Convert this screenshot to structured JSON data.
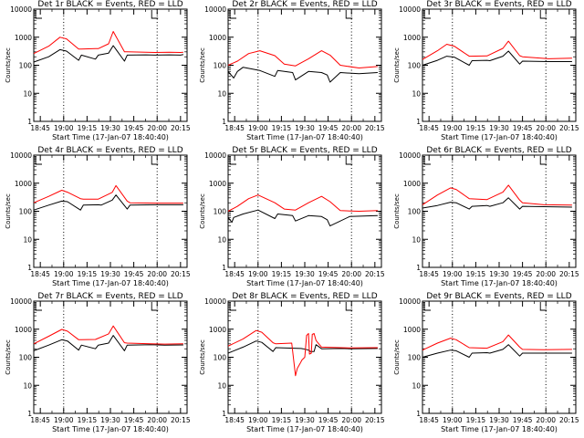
{
  "colors": {
    "events": "#000000",
    "lld": "#ff0000",
    "axis": "#000000"
  },
  "chart_data": [
    {
      "type": "line",
      "detector": "1r",
      "title": "Det 1r BLACK = Events, RED = LLD",
      "xlabel": "Start Time (17-Jan-07 18:40:40)",
      "ylabel": "Counts/sec",
      "y_scale": "log",
      "ylim": [
        1,
        10000
      ],
      "yticks": [
        1,
        10,
        100,
        1000,
        10000
      ],
      "ytick_labels": [
        "1",
        "10",
        "100",
        "1000",
        "10000"
      ],
      "x_units": "hours since 18:40:40",
      "xlim": [
        0,
        1.64
      ],
      "xticks": [
        0.07,
        0.32,
        0.57,
        0.82,
        1.07,
        1.32,
        1.57
      ],
      "xtick_labels": [
        "18:45",
        "19:00",
        "19:15",
        "19:30",
        "19:45",
        "20:00",
        "20:15"
      ],
      "markers": [
        0.32,
        1.32
      ],
      "series": [
        {
          "name": "Events",
          "color": "#000000",
          "x": [
            0.0,
            0.16,
            0.28,
            0.35,
            0.48,
            0.51,
            0.66,
            0.69,
            0.8,
            0.85,
            0.97,
            1.0,
            1.2,
            1.3,
            1.45,
            1.57,
            1.6
          ],
          "y": [
            130,
            200,
            360,
            320,
            150,
            230,
            165,
            230,
            270,
            500,
            140,
            230,
            235,
            230,
            235,
            230,
            240
          ]
        },
        {
          "name": "LLD",
          "color": "#ff0000",
          "x": [
            0.0,
            0.16,
            0.28,
            0.35,
            0.48,
            0.51,
            0.66,
            0.69,
            0.8,
            0.85,
            0.97,
            1.0,
            1.2,
            1.3,
            1.45,
            1.57,
            1.6
          ],
          "y": [
            260,
            480,
            1000,
            870,
            380,
            380,
            390,
            390,
            580,
            1600,
            300,
            300,
            290,
            285,
            290,
            285,
            290
          ]
        }
      ]
    },
    {
      "type": "line",
      "detector": "2r",
      "title": "Det 2r BLACK = Events, RED = LLD",
      "xlabel": "Start Time (17-Jan-07 18:40:40)",
      "ylabel": "Counts/sec",
      "y_scale": "log",
      "ylim": [
        1,
        10000
      ],
      "yticks": [
        1,
        10,
        100,
        1000,
        10000
      ],
      "ytick_labels": [
        "1",
        "10",
        "100",
        "1000",
        "10000"
      ],
      "x_units": "hours since 18:40:40",
      "xlim": [
        0,
        1.64
      ],
      "xticks": [
        0.07,
        0.32,
        0.57,
        0.82,
        1.07,
        1.32,
        1.57
      ],
      "xtick_labels": [
        "18:45",
        "19:00",
        "19:15",
        "19:30",
        "19:45",
        "20:00",
        "20:15"
      ],
      "markers": [
        0.32,
        1.32
      ],
      "series": [
        {
          "name": "Events",
          "color": "#000000",
          "x": [
            0.0,
            0.06,
            0.1,
            0.16,
            0.34,
            0.5,
            0.53,
            0.69,
            0.72,
            0.86,
            1.0,
            1.06,
            1.09,
            1.2,
            1.4,
            1.6
          ],
          "y": [
            60,
            35,
            60,
            85,
            65,
            40,
            65,
            55,
            30,
            60,
            55,
            45,
            25,
            55,
            50,
            55
          ]
        },
        {
          "name": "LLD",
          "color": "#ff0000",
          "x": [
            0.0,
            0.1,
            0.22,
            0.34,
            0.5,
            0.6,
            0.72,
            0.86,
            1.0,
            1.09,
            1.2,
            1.4,
            1.6
          ],
          "y": [
            100,
            140,
            260,
            330,
            220,
            110,
            95,
            170,
            330,
            230,
            100,
            80,
            90
          ]
        }
      ]
    },
    {
      "type": "line",
      "detector": "3r",
      "title": "Det 3r BLACK = Events, RED = LLD",
      "xlabel": "Start Time (17-Jan-07 18:40:40)",
      "ylabel": "Counts/sec",
      "y_scale": "log",
      "ylim": [
        1,
        10000
      ],
      "yticks": [
        1,
        10,
        100,
        1000,
        10000
      ],
      "ytick_labels": [
        "1",
        "10",
        "100",
        "1000",
        "10000"
      ],
      "x_units": "hours since 18:40:40",
      "xlim": [
        0,
        1.64
      ],
      "xticks": [
        0.07,
        0.32,
        0.57,
        0.82,
        1.07,
        1.32,
        1.57
      ],
      "xtick_labels": [
        "18:45",
        "19:00",
        "19:15",
        "19:30",
        "19:45",
        "20:00",
        "20:15"
      ],
      "markers": [
        0.32,
        1.32
      ],
      "series": [
        {
          "name": "Events",
          "color": "#000000",
          "x": [
            0.0,
            0.16,
            0.26,
            0.34,
            0.5,
            0.53,
            0.69,
            0.72,
            0.86,
            0.92,
            1.04,
            1.07,
            1.35,
            1.6
          ],
          "y": [
            100,
            150,
            210,
            195,
            100,
            145,
            150,
            145,
            210,
            320,
            110,
            140,
            135,
            135
          ]
        },
        {
          "name": "LLD",
          "color": "#ff0000",
          "x": [
            0.0,
            0.16,
            0.26,
            0.34,
            0.5,
            0.69,
            0.86,
            0.92,
            1.04,
            1.07,
            1.35,
            1.6
          ],
          "y": [
            160,
            330,
            560,
            480,
            210,
            215,
            400,
            720,
            220,
            200,
            170,
            180
          ]
        }
      ]
    },
    {
      "type": "line",
      "detector": "4r",
      "title": "Det 4r BLACK = Events, RED = LLD",
      "xlabel": "Start Time (17-Jan-07 18:40:40)",
      "ylabel": "Counts/sec",
      "y_scale": "log",
      "ylim": [
        1,
        10000
      ],
      "yticks": [
        1,
        10,
        100,
        1000,
        10000
      ],
      "ytick_labels": [
        "1",
        "10",
        "100",
        "1000",
        "10000"
      ],
      "x_units": "hours since 18:40:40",
      "xlim": [
        0,
        1.64
      ],
      "xticks": [
        0.07,
        0.32,
        0.57,
        0.82,
        1.07,
        1.32,
        1.57
      ],
      "xtick_labels": [
        "18:45",
        "19:00",
        "19:15",
        "19:30",
        "19:45",
        "20:00",
        "20:15"
      ],
      "markers": [
        0.32,
        1.32
      ],
      "series": [
        {
          "name": "Events",
          "color": "#000000",
          "x": [
            0.0,
            0.16,
            0.3,
            0.36,
            0.5,
            0.53,
            0.69,
            0.72,
            0.84,
            0.88,
            1.0,
            1.03,
            1.3,
            1.6
          ],
          "y": [
            110,
            165,
            230,
            220,
            110,
            165,
            170,
            165,
            250,
            380,
            120,
            165,
            170,
            170
          ]
        },
        {
          "name": "LLD",
          "color": "#ff0000",
          "x": [
            0.0,
            0.16,
            0.3,
            0.36,
            0.5,
            0.53,
            0.69,
            0.84,
            0.88,
            1.0,
            1.03,
            1.3,
            1.6
          ],
          "y": [
            200,
            340,
            560,
            480,
            280,
            270,
            270,
            470,
            820,
            230,
            200,
            195,
            195
          ]
        }
      ]
    },
    {
      "type": "line",
      "detector": "5r",
      "title": "Det 5r BLACK = Events, RED = LLD",
      "xlabel": "Start Time (17-Jan-07 18:40:40)",
      "ylabel": "Counts/sec",
      "y_scale": "log",
      "ylim": [
        1,
        10000
      ],
      "yticks": [
        1,
        10,
        100,
        1000,
        10000
      ],
      "ytick_labels": [
        "1",
        "10",
        "100",
        "1000",
        "10000"
      ],
      "x_units": "hours since 18:40:40",
      "xlim": [
        0,
        1.64
      ],
      "xticks": [
        0.07,
        0.32,
        0.57,
        0.82,
        1.07,
        1.32,
        1.57
      ],
      "xtick_labels": [
        "18:45",
        "19:00",
        "19:15",
        "19:30",
        "19:45",
        "20:00",
        "20:15"
      ],
      "markers": [
        0.32,
        1.32
      ],
      "series": [
        {
          "name": "Events",
          "color": "#000000",
          "x": [
            0.0,
            0.04,
            0.06,
            0.16,
            0.32,
            0.5,
            0.53,
            0.69,
            0.72,
            0.86,
            1.0,
            1.06,
            1.09,
            1.3,
            1.6
          ],
          "y": [
            60,
            40,
            60,
            80,
            110,
            55,
            80,
            70,
            45,
            70,
            65,
            50,
            30,
            65,
            70
          ]
        },
        {
          "name": "LLD",
          "color": "#ff0000",
          "x": [
            0.0,
            0.1,
            0.22,
            0.32,
            0.5,
            0.6,
            0.72,
            0.86,
            1.0,
            1.09,
            1.2,
            1.4,
            1.6
          ],
          "y": [
            100,
            150,
            280,
            380,
            200,
            120,
            110,
            200,
            340,
            220,
            105,
            100,
            105
          ]
        }
      ]
    },
    {
      "type": "line",
      "detector": "6r",
      "title": "Det 6r BLACK = Events, RED = LLD",
      "xlabel": "Start Time (17-Jan-07 18:40:40)",
      "ylabel": "Counts/sec",
      "y_scale": "log",
      "ylim": [
        1,
        10000
      ],
      "yticks": [
        1,
        10,
        100,
        1000,
        10000
      ],
      "ytick_labels": [
        "1",
        "10",
        "100",
        "1000",
        "10000"
      ],
      "x_units": "hours since 18:40:40",
      "xlim": [
        0,
        1.64
      ],
      "xticks": [
        0.07,
        0.32,
        0.57,
        0.82,
        1.07,
        1.32,
        1.57
      ],
      "xtick_labels": [
        "18:45",
        "19:00",
        "19:15",
        "19:30",
        "19:45",
        "20:00",
        "20:15"
      ],
      "markers": [
        0.32,
        1.32
      ],
      "series": [
        {
          "name": "Events",
          "color": "#000000",
          "x": [
            0.0,
            0.16,
            0.3,
            0.36,
            0.5,
            0.53,
            0.69,
            0.72,
            0.86,
            0.92,
            1.04,
            1.07,
            1.3,
            1.6
          ],
          "y": [
            130,
            160,
            210,
            200,
            120,
            150,
            160,
            150,
            200,
            300,
            120,
            150,
            145,
            140
          ]
        },
        {
          "name": "LLD",
          "color": "#ff0000",
          "x": [
            0.0,
            0.16,
            0.3,
            0.36,
            0.5,
            0.69,
            0.86,
            0.92,
            1.04,
            1.07,
            1.3,
            1.6
          ],
          "y": [
            170,
            380,
            680,
            600,
            280,
            260,
            480,
            850,
            250,
            200,
            170,
            165
          ]
        }
      ]
    },
    {
      "type": "line",
      "detector": "7r",
      "title": "Det 7r BLACK = Events, RED = LLD",
      "xlabel": "Start Time (17-Jan-07 18:40:40)",
      "ylabel": "Counts/sec",
      "y_scale": "log",
      "ylim": [
        1,
        10000
      ],
      "yticks": [
        1,
        10,
        100,
        1000,
        10000
      ],
      "ytick_labels": [
        "1",
        "10",
        "100",
        "1000",
        "10000"
      ],
      "x_units": "hours since 18:40:40",
      "xlim": [
        0,
        1.64
      ],
      "xticks": [
        0.07,
        0.32,
        0.57,
        0.82,
        1.07,
        1.32,
        1.57
      ],
      "xtick_labels": [
        "18:45",
        "19:00",
        "19:15",
        "19:30",
        "19:45",
        "20:00",
        "20:15"
      ],
      "markers": [
        0.32,
        1.32
      ],
      "series": [
        {
          "name": "Events",
          "color": "#000000",
          "x": [
            0.0,
            0.16,
            0.3,
            0.36,
            0.48,
            0.51,
            0.66,
            0.69,
            0.8,
            0.85,
            0.97,
            1.0,
            1.25,
            1.4,
            1.6
          ],
          "y": [
            170,
            270,
            420,
            380,
            180,
            270,
            200,
            270,
            320,
            600,
            170,
            270,
            280,
            270,
            275
          ]
        },
        {
          "name": "LLD",
          "color": "#ff0000",
          "x": [
            0.0,
            0.16,
            0.3,
            0.36,
            0.48,
            0.51,
            0.66,
            0.8,
            0.85,
            0.97,
            1.0,
            1.25,
            1.4,
            1.6
          ],
          "y": [
            300,
            560,
            980,
            850,
            420,
            420,
            430,
            680,
            1300,
            330,
            320,
            300,
            295,
            300
          ]
        }
      ]
    },
    {
      "type": "line",
      "detector": "8r",
      "title": "Det 8r BLACK = Events, RED = LLD",
      "xlabel": "Start Time (17-Jan-07 18:40:40)",
      "ylabel": "Counts/sec",
      "y_scale": "log",
      "ylim": [
        1,
        10000
      ],
      "yticks": [
        1,
        10,
        100,
        1000,
        10000
      ],
      "ytick_labels": [
        "1",
        "10",
        "100",
        "1000",
        "10000"
      ],
      "x_units": "hours since 18:40:40",
      "xlim": [
        0,
        1.64
      ],
      "xticks": [
        0.07,
        0.32,
        0.57,
        0.82,
        1.07,
        1.32,
        1.57
      ],
      "xtick_labels": [
        "18:45",
        "19:00",
        "19:15",
        "19:30",
        "19:45",
        "20:00",
        "20:15"
      ],
      "markers": [
        0.32,
        1.32
      ],
      "series": [
        {
          "name": "Events",
          "color": "#000000",
          "x": [
            0.0,
            0.16,
            0.3,
            0.36,
            0.48,
            0.51,
            0.7,
            0.78,
            0.8,
            0.86,
            0.88,
            0.92,
            0.94,
            1.0,
            1.2,
            1.3,
            1.6
          ],
          "y": [
            140,
            230,
            380,
            340,
            160,
            220,
            210,
            205,
            200,
            180,
            160,
            160,
            280,
            200,
            205,
            200,
            205
          ]
        },
        {
          "name": "LLD",
          "color": "#ff0000",
          "x": [
            0.0,
            0.16,
            0.3,
            0.36,
            0.48,
            0.51,
            0.68,
            0.72,
            0.74,
            0.77,
            0.79,
            0.82,
            0.84,
            0.86,
            0.87,
            0.89,
            0.9,
            0.92,
            0.94,
            0.96,
            1.0,
            1.2,
            1.3,
            1.6
          ],
          "y": [
            250,
            450,
            900,
            780,
            330,
            300,
            320,
            22,
            40,
            60,
            80,
            100,
            600,
            700,
            130,
            140,
            650,
            700,
            400,
            330,
            230,
            220,
            215,
            220
          ]
        }
      ]
    },
    {
      "type": "line",
      "detector": "9r",
      "title": "Det 9r BLACK = Events, RED = LLD",
      "xlabel": "Start Time (17-Jan-07 18:40:40)",
      "ylabel": "Counts/sec",
      "y_scale": "log",
      "ylim": [
        1,
        10000
      ],
      "yticks": [
        1,
        10,
        100,
        1000,
        10000
      ],
      "ytick_labels": [
        "1",
        "10",
        "100",
        "1000",
        "10000"
      ],
      "x_units": "hours since 18:40:40",
      "xlim": [
        0,
        1.64
      ],
      "xticks": [
        0.07,
        0.32,
        0.57,
        0.82,
        1.07,
        1.32,
        1.57
      ],
      "xtick_labels": [
        "18:45",
        "19:00",
        "19:15",
        "19:30",
        "19:45",
        "20:00",
        "20:15"
      ],
      "markers": [
        0.32,
        1.32
      ],
      "series": [
        {
          "name": "Events",
          "color": "#000000",
          "x": [
            0.0,
            0.16,
            0.3,
            0.36,
            0.5,
            0.53,
            0.69,
            0.72,
            0.86,
            0.92,
            1.04,
            1.07,
            1.3,
            1.6
          ],
          "y": [
            100,
            140,
            180,
            170,
            100,
            140,
            145,
            140,
            190,
            280,
            110,
            140,
            140,
            140
          ]
        },
        {
          "name": "LLD",
          "color": "#ff0000",
          "x": [
            0.0,
            0.16,
            0.3,
            0.36,
            0.5,
            0.69,
            0.86,
            0.92,
            1.04,
            1.07,
            1.3,
            1.6
          ],
          "y": [
            180,
            320,
            480,
            420,
            220,
            210,
            360,
            620,
            230,
            190,
            185,
            190
          ]
        }
      ]
    }
  ]
}
